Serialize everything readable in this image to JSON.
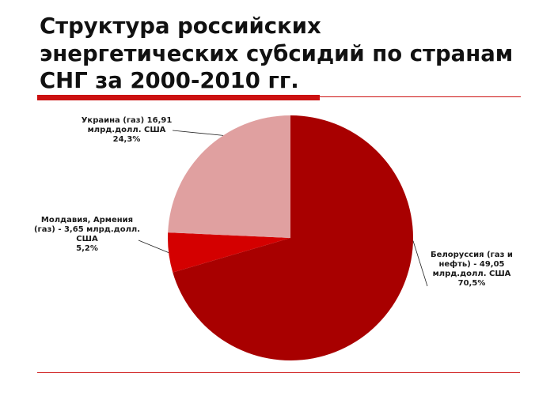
{
  "slide": {
    "title_lines": [
      "Структура российских",
      "энергетических субсидий по странам",
      "СНГ за 2000-2010 гг."
    ]
  },
  "colors": {
    "accent": "#cc1111",
    "title_text": "#111111"
  },
  "chart_data": {
    "type": "pie",
    "title": "",
    "unit": "млрд.долл. США",
    "start_angle_deg": 0,
    "direction": "clockwise",
    "slices": [
      {
        "name": "Белоруссия (газ и нефть)",
        "value": 49.05,
        "percent": 70.5,
        "color": "#a80000",
        "label_lines": [
          "Белоруссия (газ и",
          "нефть) - 49,05",
          "млрд.долл. США",
          "70,5%"
        ]
      },
      {
        "name": "Молдавия, Армения (газ)",
        "value": 3.65,
        "percent": 5.2,
        "color": "#d40000",
        "label_lines": [
          "Молдавия, Армения",
          "(газ) - 3,65 млрд.долл.",
          "США",
          "5,2%"
        ]
      },
      {
        "name": "Украина (газ)",
        "value": 16.91,
        "percent": 24.3,
        "color": "#e0a0a0",
        "label_lines": [
          "Украина (газ) 16,91",
          "млрд.долл. США",
          "24,3%"
        ]
      }
    ]
  }
}
